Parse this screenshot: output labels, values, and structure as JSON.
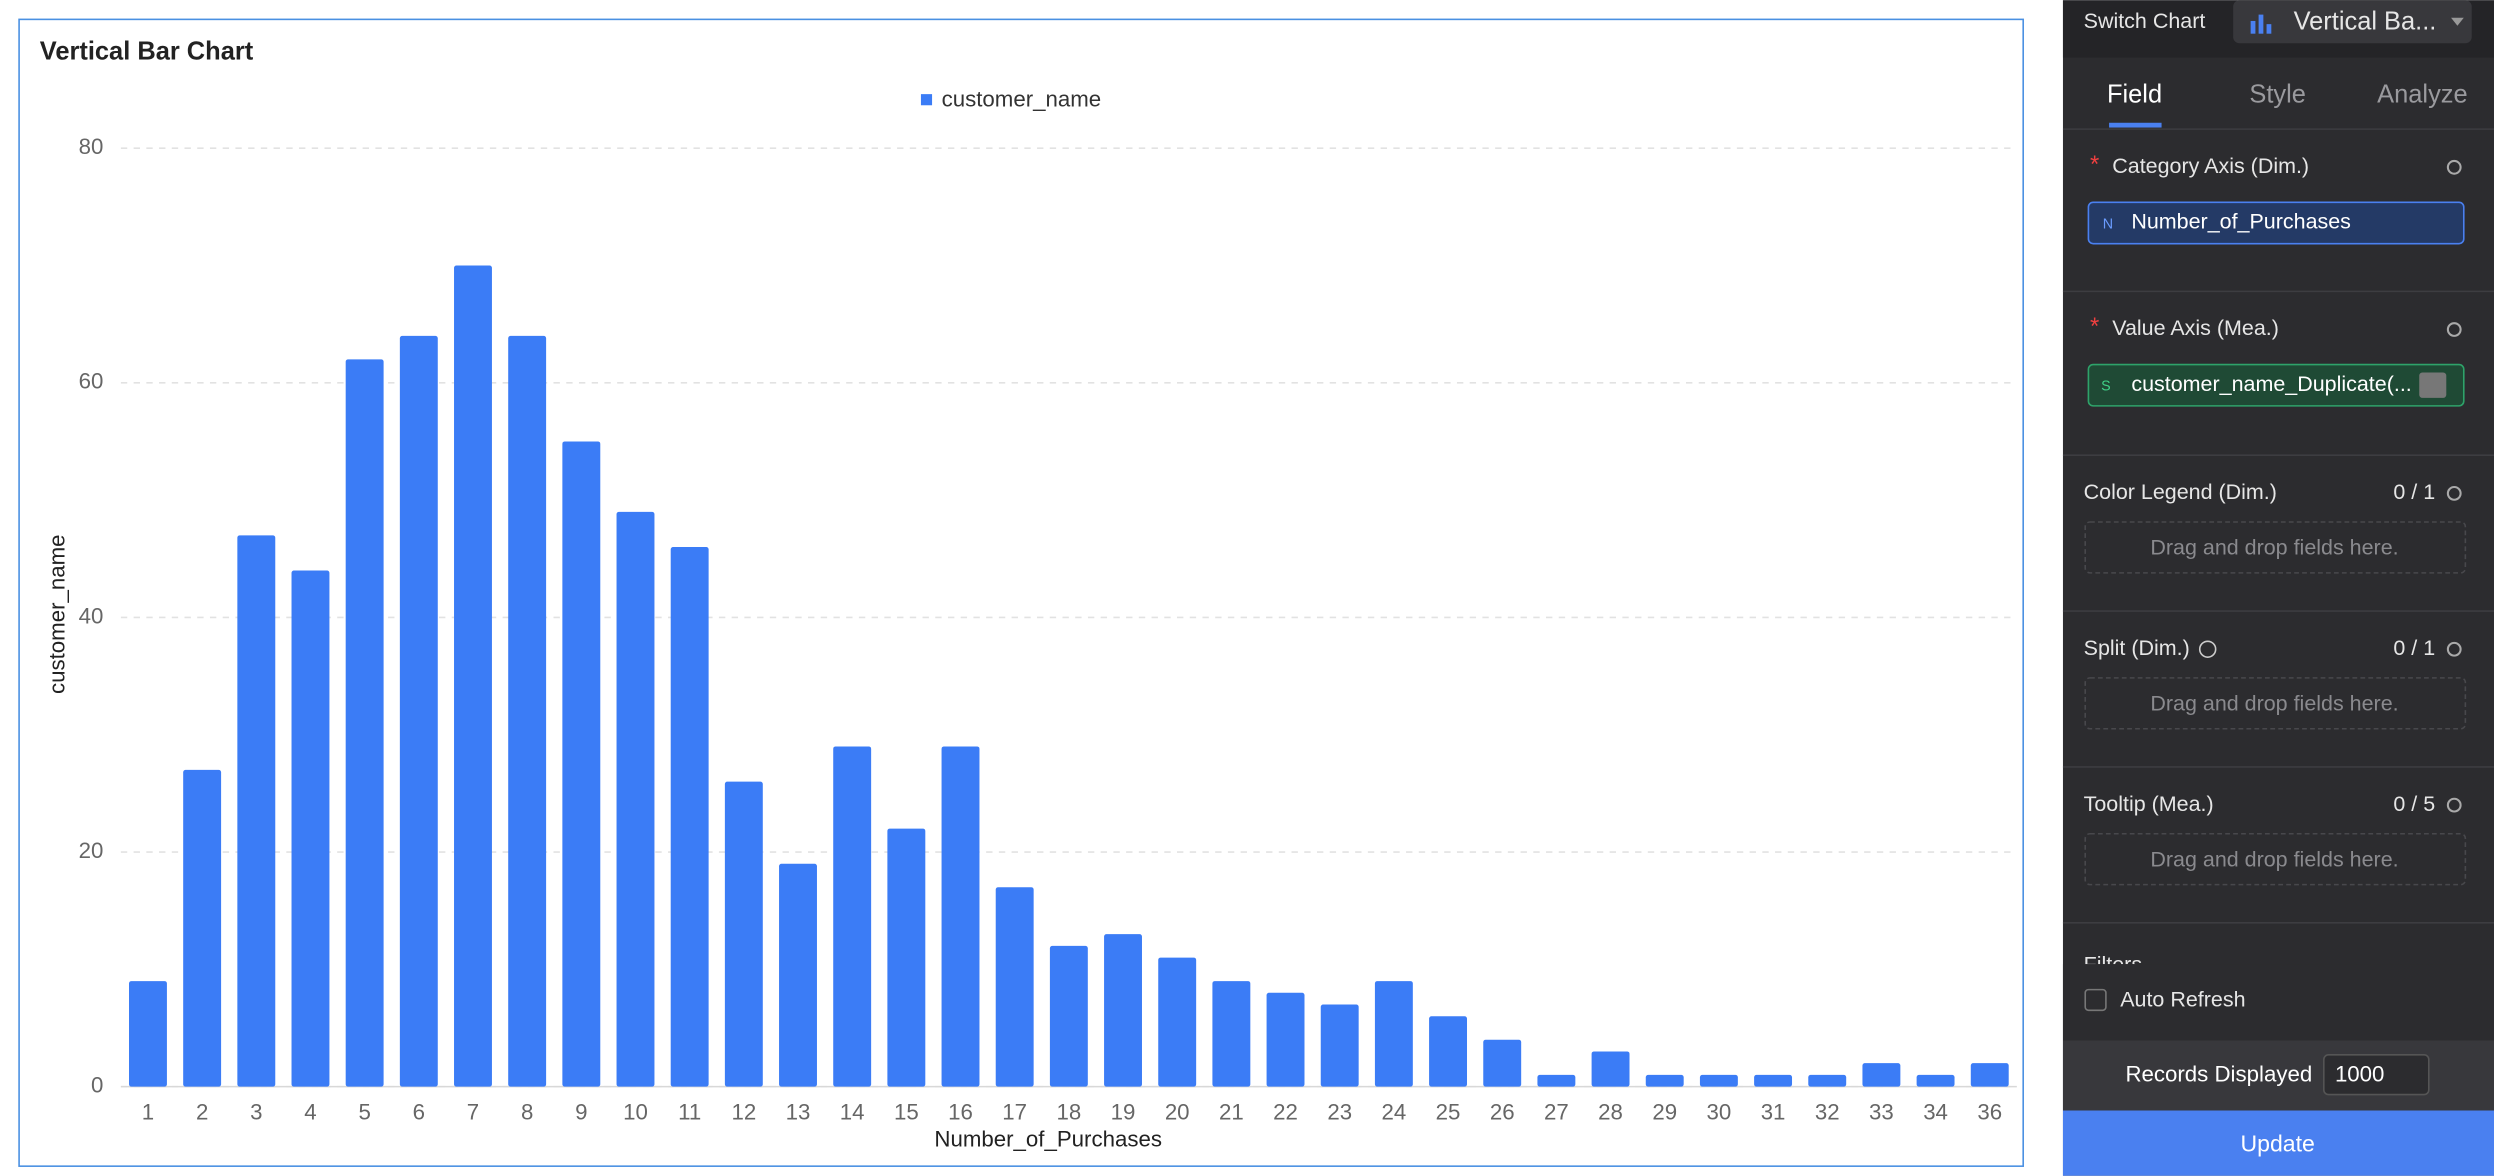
{
  "chart_data": {
    "type": "bar",
    "title": "Vertical Bar Chart",
    "x_label": "Number_of_Purchases",
    "y_label": "customer_name",
    "categories": [
      1,
      2,
      3,
      4,
      5,
      6,
      7,
      8,
      9,
      10,
      11,
      12,
      13,
      14,
      15,
      16,
      17,
      18,
      19,
      20,
      21,
      22,
      23,
      24,
      25,
      26,
      27,
      28,
      29,
      30,
      31,
      32,
      33,
      34,
      36
    ],
    "series": [
      {
        "name": "customer_name",
        "color": "#3b7cf6",
        "values": [
          9,
          27,
          47,
          44,
          62,
          64,
          70,
          64,
          55,
          49,
          46,
          26,
          19,
          29,
          22,
          29,
          17,
          12,
          13,
          11,
          9,
          8,
          7,
          9,
          6,
          4,
          1,
          3,
          1,
          1,
          1,
          1,
          2,
          1,
          2
        ]
      }
    ],
    "ylim": [
      0,
      80
    ],
    "yticks": [
      0,
      20,
      40,
      60,
      80
    ],
    "grid": true,
    "legend": "top"
  },
  "panel": {
    "switch_chart": "Switch Chart",
    "chart_type": "Vertical Ba...",
    "tabs": [
      "Field",
      "Style",
      "Analyze"
    ],
    "sections": [
      {
        "marker": "*",
        "label": "Category Axis (Dim.)",
        "field": "Number_of_Purchases"
      },
      {
        "marker": "*",
        "label": "Value Axis (Mea.)",
        "field": "customer_name_Duplicate(..."
      },
      {
        "label": "Color Legend (Dim.)",
        "count": "0 / 1",
        "placeholder": "Drag and drop fields here."
      },
      {
        "label": "Split (Dim.)",
        "count": "0 / 1",
        "placeholder": "Drag and drop fields here."
      },
      {
        "label": "Tooltip (Mea.)",
        "count": "0 / 5",
        "placeholder": "Drag and drop fields here."
      }
    ],
    "filters": "Filters",
    "auto_refresh": "Auto Refresh",
    "records_label": "Records Displayed",
    "records_value": 1000,
    "update": "Update"
  }
}
